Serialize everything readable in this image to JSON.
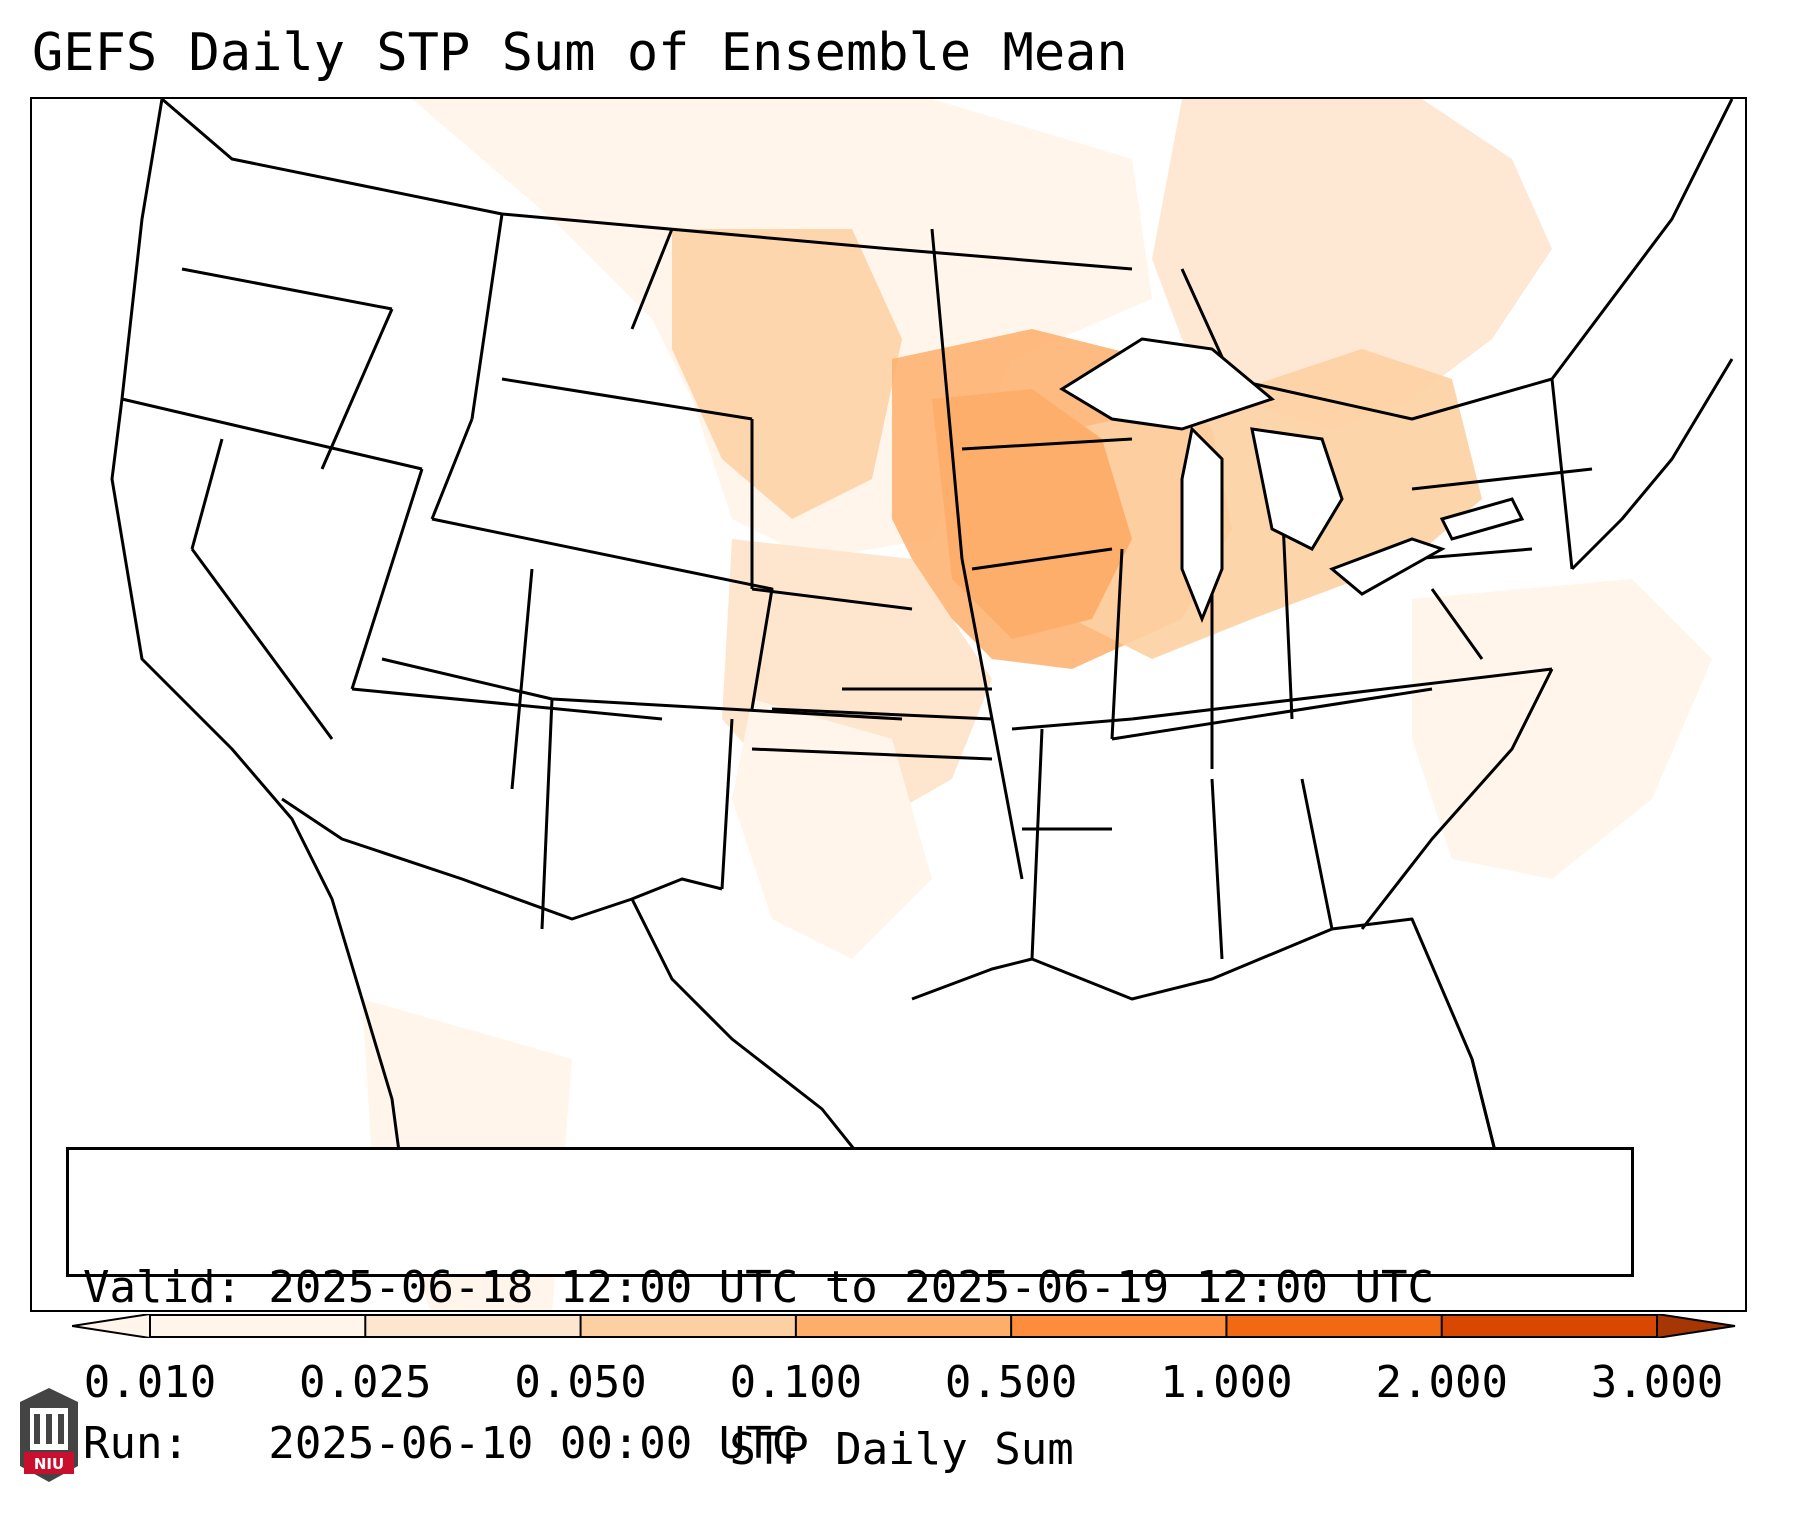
{
  "title": "GEFS Daily STP Sum of Ensemble Mean",
  "info": {
    "valid_line": "Valid: 2025-06-18 12:00 UTC to 2025-06-19 12:00 UTC",
    "run_line": "Run:   2025-06-10 00:00 UTC"
  },
  "colorbar": {
    "label": "STP Daily Sum",
    "ticks": [
      "0.010",
      "0.025",
      "0.050",
      "0.100",
      "0.500",
      "1.000",
      "2.000",
      "3.000"
    ],
    "colors": [
      "#fff5eb",
      "#fee6ce",
      "#fdd0a2",
      "#fdae6b",
      "#fd8d3c",
      "#f16913",
      "#d94801",
      "#a63603"
    ],
    "extend": "both"
  },
  "map": {
    "region": "CONUS",
    "basemap": "state-boundaries",
    "shading": [
      {
        "area": "Upper Midwest / Iowa / Illinois / Wisconsin",
        "category": "0.100"
      },
      {
        "area": "Ohio Valley / Great Lakes / Pennsylvania",
        "category": "0.050"
      },
      {
        "area": "Northern Plains / Dakotas",
        "category": "0.050"
      },
      {
        "area": "Quebec / New England",
        "category": "0.025"
      },
      {
        "area": "Southern Plains / Atlantic offshore",
        "category": "0.010"
      }
    ]
  },
  "logo": {
    "text": "NIU"
  }
}
